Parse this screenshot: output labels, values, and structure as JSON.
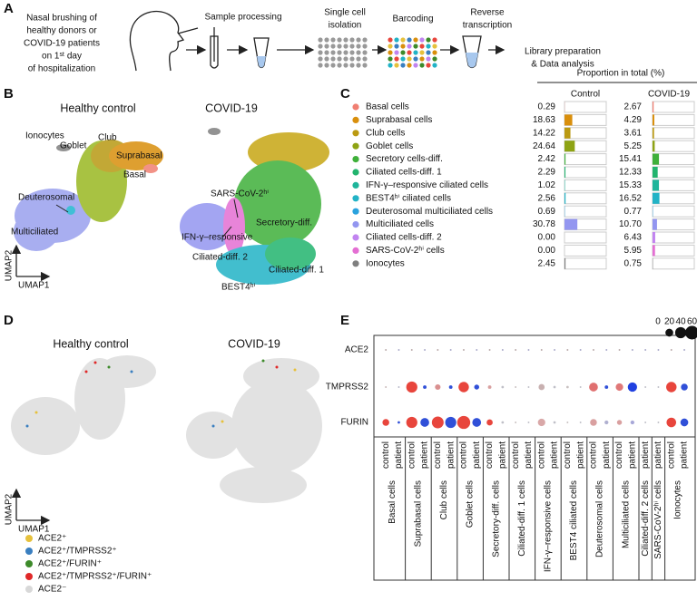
{
  "panel_labels": [
    "A",
    "B",
    "C",
    "D",
    "E"
  ],
  "workflow": {
    "start": [
      "Nasal brushing of",
      "healthy donors or",
      "COVID-19 patients",
      "on 1ˢᵗ day",
      "of hospitalization"
    ],
    "steps": [
      [
        "Sample processing"
      ],
      [
        "Single cell",
        "isolation"
      ],
      [
        "Barcoding"
      ],
      [
        "Reverse",
        "transcription"
      ],
      [
        "Library preparation",
        "& Data analysis"
      ]
    ]
  },
  "umap_b": {
    "titles": [
      "Healthy control",
      "COVID-19"
    ],
    "x_axis": "UMAP1",
    "y_axis": "UMAP2",
    "healthy_clusters": [
      "Ionocytes",
      "Club",
      "Goblet",
      "Suprabasal",
      "Basal",
      "Deuterosomal",
      "Multiciliated"
    ],
    "covid_clusters": [
      "SARS-CoV-2ʰⁱ",
      "Secretory-diff.",
      "IFN-γ–responsive",
      "Ciliated-diff. 2",
      "Ciliated-diff. 1",
      "BEST4ʰⁱ"
    ]
  },
  "umap_d": {
    "titles": [
      "Healthy control",
      "COVID-19"
    ],
    "x_axis": "UMAP1",
    "y_axis": "UMAP2",
    "legend": [
      {
        "label": "ACE2⁺",
        "color": "#e6c13c"
      },
      {
        "label": "ACE2⁺/TMPRSS2⁺",
        "color": "#3a7fc0"
      },
      {
        "label": "ACE2⁺/FURIN⁺",
        "color": "#3d8a2a"
      },
      {
        "label": "ACE2⁺/TMPRSS2⁺/FURIN⁺",
        "color": "#e02828"
      },
      {
        "label": "ACE2⁻",
        "color": "#d8d8d8"
      }
    ]
  },
  "chart_data": [
    {
      "type": "bar",
      "title": "Proportion in total (%)",
      "categories": [
        "Basal cells",
        "Suprabasal cells",
        "Club cells",
        "Goblet cells",
        "Secretory cells-diff.",
        "Ciliated cells-diff. 1",
        "IFN-γ–responsive ciliated cells",
        "BEST4ʰⁱ ciliated cells",
        "Deuterosomal multiciliated cells",
        "Multiciliated cells",
        "Ciliated cells-diff. 2",
        "SARS-CoV-2ʰⁱ cells",
        "Ionocytes"
      ],
      "colors": [
        "#f07f72",
        "#d98f0c",
        "#bb9a12",
        "#8ea314",
        "#3fb03a",
        "#22b46e",
        "#1fb59b",
        "#22b3c6",
        "#2aa2de",
        "#9396f0",
        "#c184f0",
        "#e46fd3",
        "#7f7f7f"
      ],
      "series": [
        {
          "name": "Control",
          "values": [
            0.29,
            18.63,
            14.22,
            24.64,
            2.42,
            2.29,
            1.02,
            2.56,
            0.69,
            30.78,
            0,
            0,
            2.45
          ],
          "value_labels": [
            "0.29",
            "18.63",
            "14.22",
            "24.64",
            "2.42",
            "2.29",
            "1.02",
            "2.56",
            "0.69",
            "30.78",
            "0.00",
            "0.00",
            "2.45"
          ]
        },
        {
          "name": "COVID-19",
          "values": [
            2.67,
            4.29,
            3.61,
            5.25,
            15.41,
            12.33,
            15.33,
            16.52,
            0.77,
            10.7,
            6.43,
            5.95,
            0.75
          ],
          "value_labels": [
            "2.67",
            "4.29",
            "3.61",
            "5.25",
            "15.41",
            "12.33",
            "15.33",
            "16.52",
            "0.77",
            "10.70",
            "6.43",
            "5.95",
            "0.75"
          ]
        }
      ],
      "xlim": [
        0,
        100
      ]
    },
    {
      "type": "dot",
      "groups": [
        {
          "name": "Basal cells",
          "columns": [
            "control",
            "patient"
          ]
        },
        {
          "name": "Suprabasal cells",
          "columns": [
            "control",
            "patient"
          ]
        },
        {
          "name": "Club cells",
          "columns": [
            "control",
            "patient"
          ]
        },
        {
          "name": "Goblet cells",
          "columns": [
            "control",
            "patient"
          ]
        },
        {
          "name": "Secretory-diff. cells",
          "columns": [
            "control",
            "patient"
          ]
        },
        {
          "name": "Ciliated-diff. 1 cells",
          "columns": [
            "control",
            "patient"
          ]
        },
        {
          "name": "IFN-γ–responsive cells",
          "columns": [
            "control",
            "patient"
          ]
        },
        {
          "name": "BEST4 ciliated cells",
          "columns": [
            "control",
            "patient"
          ]
        },
        {
          "name": "Deuterosomal cells",
          "columns": [
            "control",
            "patient"
          ]
        },
        {
          "name": "Multiciliated cells",
          "columns": [
            "control",
            "patient"
          ]
        },
        {
          "name": "Ciliated-diff. 2 cells",
          "columns": [
            "patient"
          ]
        },
        {
          "name": "SARS-CoV-2ʰⁱ cells",
          "columns": [
            "patient"
          ]
        },
        {
          "name": "Ionocytes",
          "columns": [
            "control",
            "patient"
          ]
        }
      ],
      "series": [
        {
          "name": "ACE2",
          "values": [
            1,
            1,
            1,
            1,
            1,
            1,
            1,
            1,
            1,
            1,
            1,
            1,
            1,
            1,
            1,
            1,
            1,
            1,
            1,
            1,
            1,
            1,
            1,
            1
          ],
          "colors": [
            "#b9a9a9",
            "#a9a9c9",
            "#b9a9a9",
            "#a9a9c9",
            "#b9a9a9",
            "#a9a9c9",
            "#b9a9a9",
            "#a9a9c9",
            "#b9a9a9",
            "#a9a9c9",
            "#b9a9a9",
            "#a9a9c9",
            "#b9a9a9",
            "#a9a9c9",
            "#b9a9a9",
            "#a9a9c9",
            "#b9a9a9",
            "#a9a9c9",
            "#b9a9a9",
            "#a9a9c9",
            "#a9a9c9",
            "#a9a9c9",
            "#b9a9a9",
            "#a9a9c9"
          ]
        },
        {
          "name": "TMPRSS2",
          "values": [
            1,
            1,
            40,
            4,
            10,
            4,
            35,
            8,
            4,
            2,
            1,
            1,
            12,
            2,
            2,
            1,
            25,
            4,
            18,
            28,
            1,
            1,
            35,
            15
          ],
          "colors": [
            "#c8b8b8",
            "#b8b8c8",
            "#e8453c",
            "#3050d8",
            "#d99090",
            "#3050d8",
            "#e8453c",
            "#3050d8",
            "#d9a0a0",
            "#c0c0c8",
            "#c8c0c0",
            "#c0c0c8",
            "#c8b0b0",
            "#c0c0c8",
            "#c8c0c0",
            "#c0c0c8",
            "#e07070",
            "#3050d8",
            "#e07878",
            "#2040e0",
            "#c0c0c8",
            "#c0c0c8",
            "#e8453c",
            "#3050d8"
          ]
        },
        {
          "name": "FURIN",
          "values": [
            15,
            2,
            40,
            25,
            45,
            40,
            55,
            25,
            12,
            2,
            1,
            1,
            18,
            2,
            1,
            1,
            15,
            5,
            8,
            5,
            1,
            1,
            30,
            20
          ],
          "colors": [
            "#e8453c",
            "#3050d8",
            "#e8453c",
            "#3050d8",
            "#e8453c",
            "#3050d8",
            "#e8453c",
            "#3050d8",
            "#e8453c",
            "#c0c0c8",
            "#c8c0c0",
            "#c0c0c8",
            "#d9a8a8",
            "#c0c0c8",
            "#c8c0c0",
            "#c0c0c8",
            "#d9a0a0",
            "#b0b0d0",
            "#d9a0a0",
            "#a8a8d8",
            "#c0c0c8",
            "#c0c0c8",
            "#e8453c",
            "#3050d8"
          ]
        }
      ],
      "size_lim": [
        0,
        60
      ],
      "size_ticks": [
        0,
        20,
        40,
        60
      ]
    }
  ]
}
